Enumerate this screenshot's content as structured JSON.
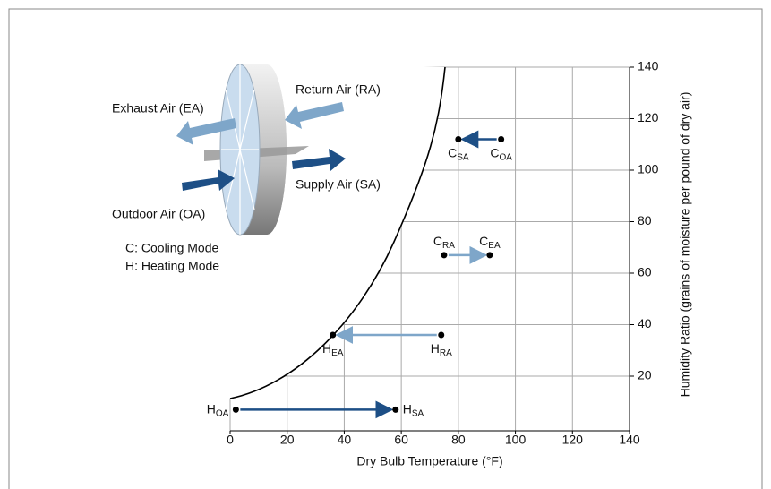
{
  "chart_data": {
    "type": "scatter",
    "xlabel": "Dry Bulb Temperature (°F)",
    "ylabel": "Humidity Ratio (grains of moisture per pound of dry air)",
    "xlim": [
      0,
      140
    ],
    "ylim": [
      0,
      140
    ],
    "xticks": [
      0,
      20,
      40,
      60,
      80,
      100,
      120,
      140
    ],
    "yticks": [
      20,
      40,
      60,
      80,
      100,
      120,
      140
    ],
    "grid": true,
    "points": [
      {
        "label": "H",
        "sub": "OA",
        "x": 2,
        "y": 7,
        "label_pos": "left"
      },
      {
        "label": "H",
        "sub": "SA",
        "x": 58,
        "y": 7,
        "label_pos": "right"
      },
      {
        "label": "H",
        "sub": "EA",
        "x": 36,
        "y": 36,
        "label_pos": "below"
      },
      {
        "label": "H",
        "sub": "RA",
        "x": 74,
        "y": 36,
        "label_pos": "below"
      },
      {
        "label": "C",
        "sub": "RA",
        "x": 75,
        "y": 67,
        "label_pos": "above"
      },
      {
        "label": "C",
        "sub": "EA",
        "x": 91,
        "y": 67,
        "label_pos": "above"
      },
      {
        "label": "C",
        "sub": "SA",
        "x": 80,
        "y": 112,
        "label_pos": "below"
      },
      {
        "label": "C",
        "sub": "OA",
        "x": 95,
        "y": 112,
        "label_pos": "below"
      }
    ],
    "arrows": [
      {
        "from": 0,
        "to": 1,
        "color": "#1d4f86"
      },
      {
        "from": 3,
        "to": 2,
        "color": "#7ea6c9"
      },
      {
        "from": 4,
        "to": 5,
        "color": "#7ea6c9"
      },
      {
        "from": 7,
        "to": 6,
        "color": "#1d4f86"
      }
    ],
    "annotations": [
      "Exhaust Air (EA)",
      "Return Air (RA)",
      "Supply Air (SA)",
      "Outdoor Air (OA)",
      "C: Cooling Mode",
      "H: Heating Mode"
    ]
  }
}
